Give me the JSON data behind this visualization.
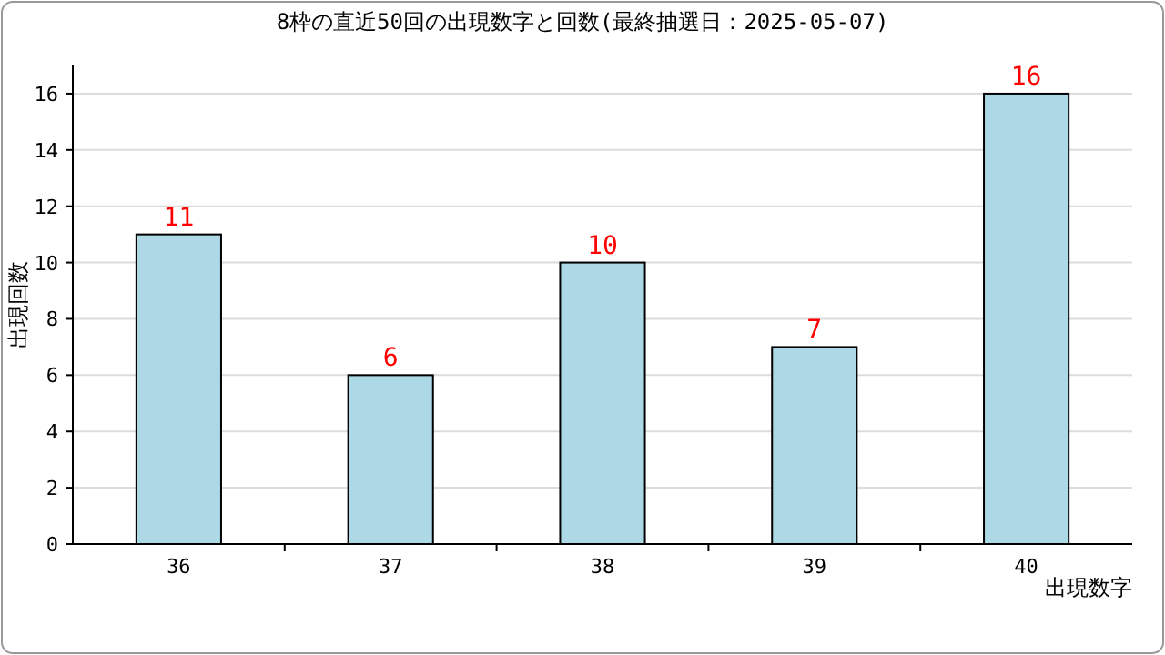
{
  "chart_data": {
    "type": "bar",
    "title": "8枠の直近50回の出現数字と回数(最終抽選日：2025-05-07)",
    "xlabel": "出現数字",
    "ylabel": "出現回数",
    "categories": [
      "36",
      "37",
      "38",
      "39",
      "40"
    ],
    "values": [
      11,
      6,
      10,
      7,
      16
    ],
    "color": "#add8e6",
    "ylim": [
      0,
      17
    ],
    "yticks": [
      0,
      2,
      4,
      6,
      8,
      10,
      12,
      14,
      16
    ],
    "grid": "y",
    "data_labels": true
  }
}
